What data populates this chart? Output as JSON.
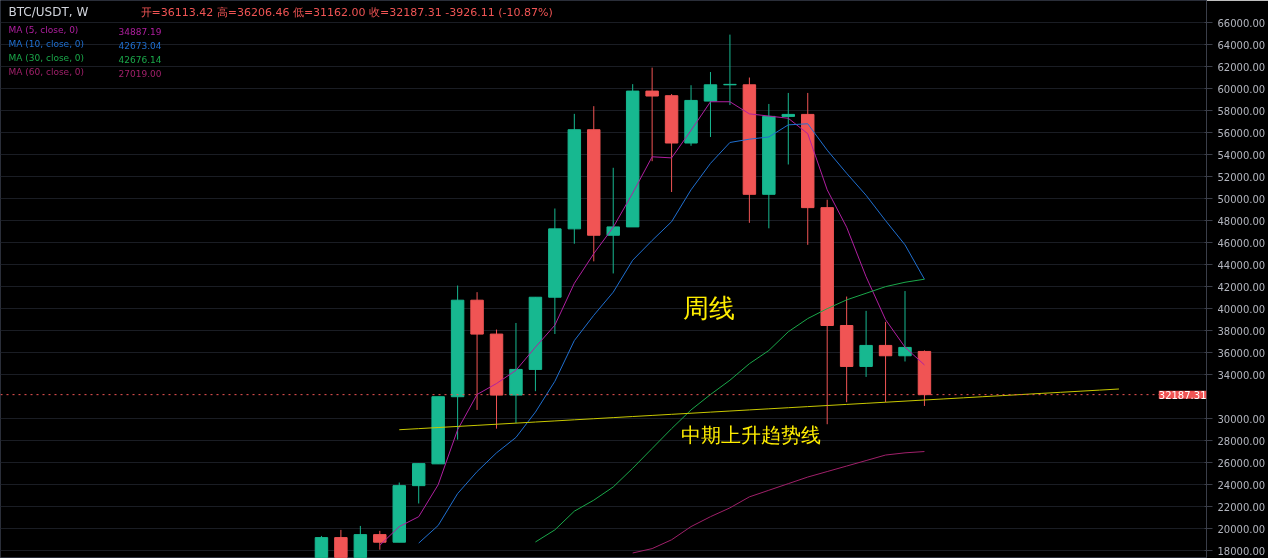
{
  "chart_data": {
    "type": "candlestick",
    "title": "BTC/USDT, W",
    "subtitle": "开=36113.42  高=36206.46  低=31162.00  收=32187.31  -3926.11 (-10.87%)",
    "categories": [
      null,
      null,
      null,
      null,
      null,
      null,
      null,
      null,
      null,
      null,
      null,
      null,
      null,
      null,
      null,
      null,
      null,
      null,
      null,
      null,
      null,
      null,
      null,
      null,
      null,
      null,
      null,
      null,
      null,
      null,
      null,
      null,
      null,
      null,
      null,
      null,
      null,
      null,
      null,
      null,
      null,
      null,
      null,
      null,
      null,
      null,
      null,
      null,
      null,
      null,
      null,
      null,
      null,
      null,
      null,
      null,
      null,
      null,
      null,
      null,
      null,
      null
    ],
    "ohlc": [
      null,
      null,
      null,
      null,
      null,
      null,
      null,
      null,
      null,
      null,
      null,
      null,
      null,
      null,
      null,
      null,
      [
        17400,
        19350,
        17400,
        19200
      ],
      [
        19200,
        19900,
        17400,
        17400
      ],
      [
        17400,
        20260,
        17400,
        19470
      ],
      [
        19470,
        19810,
        18100,
        18780
      ],
      [
        18780,
        24200,
        18780,
        23920
      ],
      [
        23920,
        25920,
        22300,
        25920
      ],
      [
        25900,
        32000,
        25900,
        32000
      ],
      [
        32000,
        42100,
        28100,
        40770
      ],
      [
        40770,
        41500,
        30800,
        37690
      ],
      [
        37690,
        38100,
        29100,
        32150
      ],
      [
        32150,
        38700,
        29600,
        34480
      ],
      [
        34480,
        41040,
        32500,
        41040
      ],
      [
        41040,
        49100,
        37700,
        47250
      ],
      [
        47250,
        57700,
        45900,
        56260
      ],
      [
        56260,
        58400,
        44300,
        46670
      ],
      [
        46670,
        52800,
        43200,
        47430
      ],
      [
        47430,
        60400,
        47430,
        59770
      ],
      [
        59770,
        61900,
        53400,
        59320
      ],
      [
        59350,
        59500,
        50600,
        55050
      ],
      [
        55050,
        60300,
        54800,
        58920
      ],
      [
        58860,
        61500,
        55600,
        60340
      ],
      [
        60340,
        64900,
        58500,
        60380
      ],
      [
        60340,
        61000,
        47800,
        50390
      ],
      [
        50390,
        58600,
        47300,
        57470
      ],
      [
        57470,
        59600,
        53100,
        57650
      ],
      [
        57650,
        59600,
        45800,
        49180
      ],
      [
        49180,
        49900,
        29500,
        38470
      ],
      [
        38470,
        41100,
        31500,
        34750
      ],
      [
        34750,
        39800,
        33800,
        36660
      ],
      [
        36660,
        38800,
        31500,
        35720
      ],
      [
        35720,
        41600,
        35200,
        36480
      ],
      [
        36113.42,
        36206.46,
        31162.0,
        32187.31
      ],
      null,
      null,
      null,
      null,
      null,
      null,
      null,
      null,
      null,
      null,
      null,
      null,
      null,
      null
    ],
    "colors": [
      null,
      null,
      null,
      null,
      null,
      null,
      null,
      null,
      null,
      null,
      null,
      null,
      null,
      null,
      null,
      null,
      "#17b890",
      "#f05454",
      "#17b890",
      "#f05454",
      "#17b890",
      "#17b890",
      "#17b890",
      "#17b890",
      "#f05454",
      "#f05454",
      "#17b890",
      "#17b890",
      "#17b890",
      "#17b890",
      "#f05454",
      "#17b890",
      "#17b890",
      "#f05454",
      "#f05454",
      "#17b890",
      "#17b890",
      "#17b890",
      "#f05454",
      "#17b890",
      "#17b890",
      "#f05454",
      "#f05454",
      "#f05454",
      "#17b890",
      "#f05454",
      "#17b890",
      "#f05454",
      null,
      null,
      null,
      null,
      null,
      null,
      null,
      null,
      null,
      null,
      null,
      null,
      null,
      null
    ],
    "series": [
      {
        "type": "line",
        "name": "MA (5, close, 0)",
        "color": "#b01fa0",
        "values": [
          null,
          null,
          null,
          null,
          null,
          null,
          null,
          null,
          null,
          null,
          null,
          null,
          null,
          null,
          null,
          null,
          null,
          null,
          null,
          18500,
          20200,
          21100,
          24000,
          29000,
          32200,
          33200,
          34400,
          36500,
          38500,
          42300,
          45000,
          47400,
          50500,
          53800,
          53700,
          56200,
          58800,
          58800,
          57700,
          57500,
          57300,
          55900,
          50800,
          47400,
          42900,
          39000,
          36500,
          34887.19,
          null,
          null,
          null,
          null,
          null,
          null,
          null,
          null,
          null,
          null,
          null,
          null,
          null,
          null
        ]
      },
      {
        "type": "line",
        "name": "MA (10, close, 0)",
        "color": "#1f6fd0",
        "values": [
          null,
          null,
          null,
          null,
          null,
          null,
          null,
          null,
          null,
          null,
          null,
          null,
          null,
          null,
          null,
          null,
          null,
          null,
          null,
          null,
          null,
          18700,
          20300,
          23200,
          25200,
          26900,
          28300,
          30600,
          33400,
          37100,
          39400,
          41500,
          44400,
          46200,
          47900,
          50800,
          53200,
          55100,
          55400,
          55600,
          56700,
          56800,
          54400,
          52300,
          50300,
          48000,
          45800,
          42673.04,
          null,
          null,
          null,
          null,
          null,
          null,
          null,
          null,
          null,
          null,
          null,
          null,
          null,
          null
        ]
      },
      {
        "type": "line",
        "name": "MA (30, close, 0)",
        "color": "#1aa84a",
        "values": [
          null,
          null,
          null,
          null,
          null,
          null,
          null,
          null,
          null,
          null,
          null,
          null,
          null,
          null,
          null,
          null,
          null,
          null,
          null,
          null,
          null,
          null,
          null,
          null,
          null,
          null,
          null,
          18800,
          19900,
          21600,
          22600,
          23800,
          25500,
          27300,
          29100,
          30800,
          32200,
          33500,
          35000,
          36200,
          37900,
          39100,
          40000,
          40800,
          41400,
          42000,
          42400,
          42676.14,
          null,
          null,
          null,
          null,
          null,
          null,
          null,
          null,
          null,
          null,
          null,
          null,
          null,
          null
        ]
      },
      {
        "type": "line",
        "name": "MA (60, close, 0)",
        "color": "#a0206a",
        "values": [
          null,
          null,
          null,
          null,
          null,
          null,
          null,
          null,
          null,
          null,
          null,
          null,
          null,
          null,
          null,
          null,
          null,
          null,
          null,
          null,
          null,
          null,
          null,
          null,
          null,
          null,
          null,
          null,
          null,
          null,
          null,
          null,
          17800,
          18200,
          19000,
          20200,
          21100,
          21900,
          22900,
          23500,
          24100,
          24700,
          25200,
          25700,
          26200,
          26700,
          26900,
          27019.0,
          null,
          null,
          null,
          null,
          null,
          null,
          null,
          null,
          null,
          null,
          null,
          null,
          null,
          null
        ]
      },
      {
        "type": "line",
        "color": "#c8c800",
        "values": [
          null,
          null,
          null,
          null,
          null,
          null,
          null,
          null,
          null,
          null,
          null,
          null,
          null,
          null,
          null,
          null,
          null,
          null,
          null,
          null,
          29000,
          29100,
          29200,
          29300,
          29400,
          29500,
          29600,
          29700,
          29800,
          29900,
          30000,
          30100,
          30200,
          30300,
          30400,
          30500,
          30600,
          30700,
          30800,
          30900,
          31000,
          31100,
          31200,
          31300,
          31400,
          31500,
          31600,
          31700,
          31800,
          31900,
          32000,
          32100,
          32200,
          32300,
          32400,
          32500,
          32600,
          32700,
          null,
          null,
          null,
          null
        ]
      }
    ],
    "annotations": [
      "周线",
      "中期上升趋势线",
      "34887.19",
      "42673.04",
      "42676.14",
      "27019.00"
    ],
    "ref_lines": [
      {
        "axis": "y",
        "value": 32187.31,
        "label": "32187.31",
        "color": "#f05454",
        "line_style": "dotted"
      }
    ],
    "ylim": [
      17300,
      68000
    ],
    "yticks": [
      {
        "value": 18000,
        "label": "18000.00"
      },
      {
        "value": 20000,
        "label": "20000.00"
      },
      {
        "value": 22000,
        "label": "22000.00"
      },
      {
        "value": 24000,
        "label": "24000.00"
      },
      {
        "value": 26000,
        "label": "26000.00"
      },
      {
        "value": 28000,
        "label": "28000.00"
      },
      {
        "value": 30000,
        "label": "30000.00"
      },
      {
        "value": 34000,
        "label": "34000.00"
      },
      {
        "value": 36000,
        "label": "36000.00"
      },
      {
        "value": 38000,
        "label": "38000.00"
      },
      {
        "value": 40000,
        "label": "40000.00"
      },
      {
        "value": 42000,
        "label": "42000.00"
      },
      {
        "value": 44000,
        "label": "44000.00"
      },
      {
        "value": 46000,
        "label": "46000.00"
      },
      {
        "value": 48000,
        "label": "48000.00"
      },
      {
        "value": 50000,
        "label": "50000.00"
      },
      {
        "value": 52000,
        "label": "52000.00"
      },
      {
        "value": 54000,
        "label": "54000.00"
      },
      {
        "value": 56000,
        "label": "56000.00"
      },
      {
        "value": 58000,
        "label": "58000.00"
      },
      {
        "value": 60000,
        "label": "60000.00"
      },
      {
        "value": 62000,
        "label": "62000.00"
      },
      {
        "value": 64000,
        "label": "64000.00"
      },
      {
        "value": 66000,
        "label": "66000.00"
      }
    ],
    "tick_labels": "y",
    "grid": "y",
    "legend": "top left"
  }
}
